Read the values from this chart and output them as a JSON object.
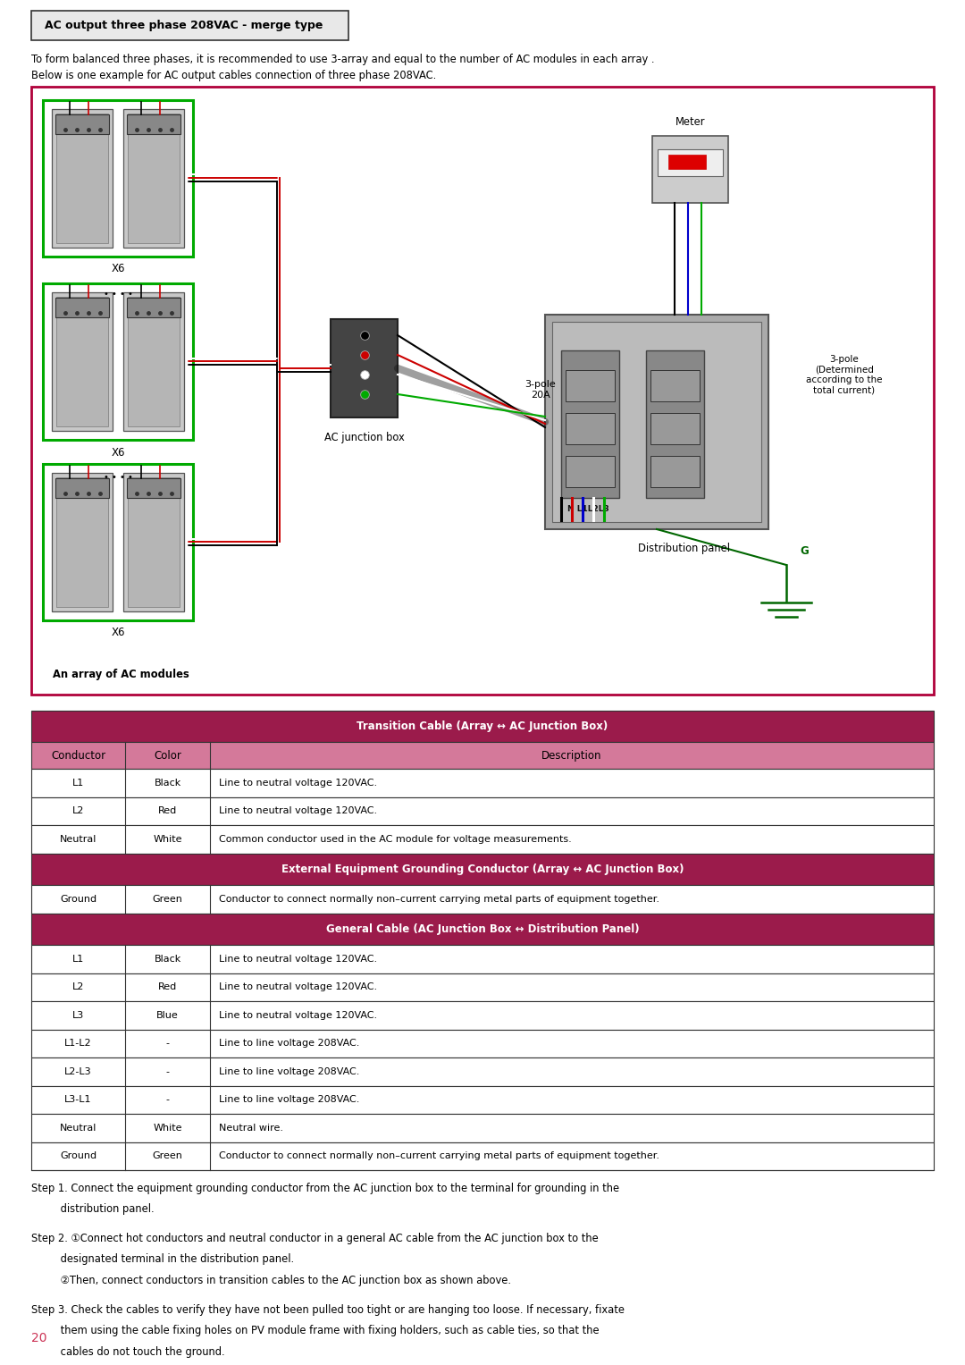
{
  "title_box": "AC output three phase 208VAC - merge type",
  "intro_line1": "To form balanced three phases, it is recommended to use 3-array and equal to the number of AC modules in each array .",
  "intro_line2": "Below is one example for AC output cables connection of three phase 208VAC.",
  "diagram_labels": {
    "ac_junction_box": "AC junction box",
    "distribution_panel": "Distribution panel",
    "array_label": "An array of AC modules",
    "meter": "Meter",
    "pole_20a": "3-pole\n20A",
    "pole_determined": "3-pole\n(Determined\naccording to the\ntotal current)",
    "x6": "X6",
    "g_label": "G",
    "n_label": "N L1L2L3"
  },
  "table_header_color": "#9B1B4B",
  "table_subheader_color": "#D4799A",
  "table_border_color": "#333333",
  "transition_cable_title": "Transition Cable (Array ↔ AC Junction Box)",
  "external_grounding_title": "External Equipment Grounding Conductor (Array ↔ AC Junction Box)",
  "general_cable_title": "General Cable (AC Junction Box ↔ Distribution Panel)",
  "col_headers": [
    "Conductor",
    "Color",
    "Description"
  ],
  "transition_rows": [
    [
      "L1",
      "Black",
      "Line to neutral voltage 120VAC."
    ],
    [
      "L2",
      "Red",
      "Line to neutral voltage 120VAC."
    ],
    [
      "Neutral",
      "White",
      "Common conductor used in the AC module for voltage measurements."
    ]
  ],
  "grounding_rows": [
    [
      "Ground",
      "Green",
      "Conductor to connect normally non–current carrying metal parts of equipment together."
    ]
  ],
  "general_rows": [
    [
      "L1",
      "Black",
      "Line to neutral voltage 120VAC."
    ],
    [
      "L2",
      "Red",
      "Line to neutral voltage 120VAC."
    ],
    [
      "L3",
      "Blue",
      "Line to neutral voltage 120VAC."
    ],
    [
      "L1-L2",
      "-",
      "Line to line voltage 208VAC."
    ],
    [
      "L2-L3",
      "-",
      "Line to line voltage 208VAC."
    ],
    [
      "L3-L1",
      "-",
      "Line to line voltage 208VAC."
    ],
    [
      "Neutral",
      "White",
      "Neutral wire."
    ],
    [
      "Ground",
      "Green",
      "Conductor to connect normally non–current carrying metal parts of equipment together."
    ]
  ],
  "step1": "Step 1. Connect the equipment grounding conductor from the AC junction box to the terminal for grounding in the",
  "step1b": "         distribution panel.",
  "step2": "Step 2. ①Connect hot conductors and neutral conductor in a general AC cable from the AC junction box to the",
  "step2b": "         designated terminal in the distribution panel.",
  "step2c": "         ②Then, connect conductors in transition cables to the AC junction box as shown above.",
  "step3": "Step 3. Check the cables to verify they have not been pulled too tight or are hanging too loose. If necessary, fixate",
  "step3b": "         them using the cable fixing holes on PV module frame with fixing holders, such as cable ties, so that the",
  "step3c": "         cables do not touch the ground.",
  "page_number": "20",
  "bg_color": "#ffffff",
  "diagram_border_color": "#B0003A"
}
